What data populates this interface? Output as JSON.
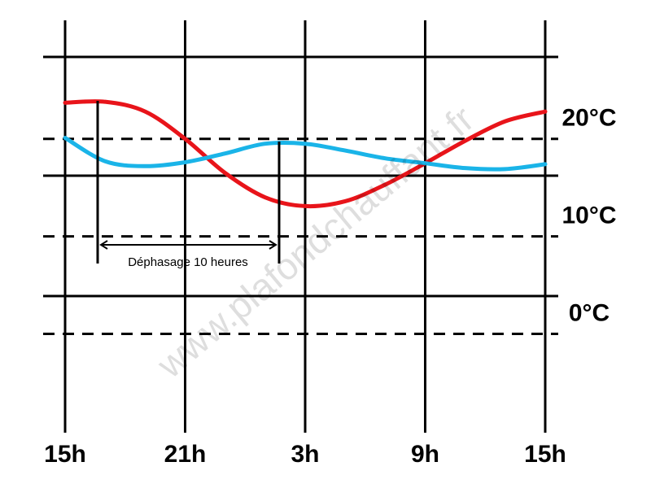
{
  "chart_data": {
    "type": "line",
    "x": [
      0,
      2,
      4,
      6,
      8,
      10,
      12,
      14,
      16,
      18,
      20,
      22,
      24
    ],
    "xlim": [
      0,
      24
    ],
    "xticks": [
      {
        "value": 0,
        "label": "15h"
      },
      {
        "value": 6,
        "label": "21h"
      },
      {
        "value": 12,
        "label": "3h"
      },
      {
        "value": 18,
        "label": "9h"
      },
      {
        "value": 24,
        "label": "15h"
      }
    ],
    "ylim": [
      -8.3,
      28.4
    ],
    "yticks": [
      {
        "value": 0,
        "label": "0°C"
      },
      {
        "value": 10,
        "label": "10°C"
      },
      {
        "value": 20,
        "label": "20°C"
      }
    ],
    "series": [
      {
        "color": "#e8141a",
        "values": [
          23.7,
          23.8,
          22.8,
          20.0,
          16.5,
          14.0,
          13.1,
          13.6,
          15.3,
          17.5,
          19.8,
          21.8,
          22.8
        ]
      },
      {
        "color": "#1ab4e8",
        "values": [
          20.1,
          17.7,
          17.2,
          17.6,
          18.5,
          19.5,
          19.5,
          18.8,
          18.0,
          17.5,
          17.0,
          16.9,
          17.4
        ]
      }
    ],
    "annotation": "Déphasage 10 heures",
    "watermark": "www.plafondchauffant.fr"
  }
}
